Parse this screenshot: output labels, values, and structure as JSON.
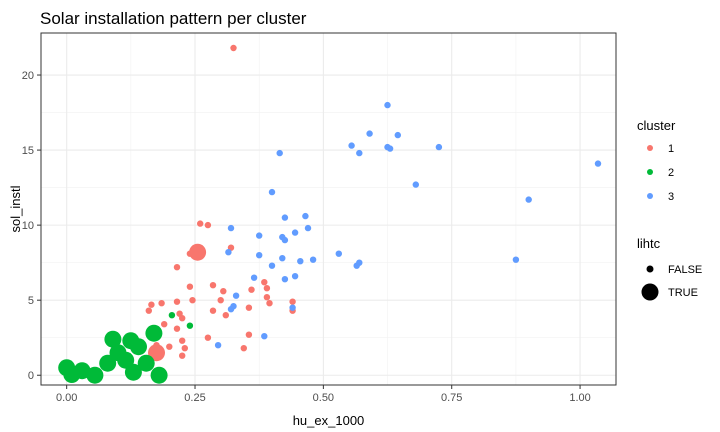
{
  "chart_data": {
    "type": "scatter",
    "title": "Solar installation pattern per cluster",
    "xlabel": "hu_ex_1000",
    "ylabel": "sol_instl",
    "xlim": [
      -0.05,
      1.07
    ],
    "ylim": [
      -0.65,
      22.8
    ],
    "x_ticks": [
      0.0,
      0.25,
      0.5,
      0.75,
      1.0
    ],
    "x_tick_labels": [
      "0.00",
      "0.25",
      "0.50",
      "0.75",
      "1.00"
    ],
    "y_ticks": [
      0,
      5,
      10,
      15,
      20
    ],
    "y_tick_labels": [
      "0",
      "5",
      "10",
      "15",
      "20"
    ],
    "grid": true,
    "colors": {
      "1": "#F8766D",
      "2": "#00BA38",
      "3": "#619CFF"
    },
    "legend_cluster": {
      "title": "cluster",
      "entries": [
        {
          "label": "1",
          "key": "1"
        },
        {
          "label": "2",
          "key": "2"
        },
        {
          "label": "3",
          "key": "3"
        }
      ]
    },
    "legend_lihtc": {
      "title": "lihtc",
      "entries": [
        {
          "label": "FALSE",
          "large": false
        },
        {
          "label": "TRUE",
          "large": true
        }
      ]
    },
    "points": [
      {
        "x": 0.325,
        "y": 21.8,
        "c": "1",
        "big": false
      },
      {
        "x": 0.26,
        "y": 10.1,
        "c": "1",
        "big": false
      },
      {
        "x": 0.275,
        "y": 10.0,
        "c": "1",
        "big": false
      },
      {
        "x": 0.32,
        "y": 8.5,
        "c": "1",
        "big": false
      },
      {
        "x": 0.24,
        "y": 8.1,
        "c": "1",
        "big": false
      },
      {
        "x": 0.215,
        "y": 7.2,
        "c": "1",
        "big": false
      },
      {
        "x": 0.285,
        "y": 6.0,
        "c": "1",
        "big": false
      },
      {
        "x": 0.305,
        "y": 5.6,
        "c": "1",
        "big": false
      },
      {
        "x": 0.36,
        "y": 5.7,
        "c": "1",
        "big": false
      },
      {
        "x": 0.385,
        "y": 6.2,
        "c": "1",
        "big": false
      },
      {
        "x": 0.39,
        "y": 5.8,
        "c": "1",
        "big": false
      },
      {
        "x": 0.24,
        "y": 5.9,
        "c": "1",
        "big": false
      },
      {
        "x": 0.245,
        "y": 5.0,
        "c": "1",
        "big": false
      },
      {
        "x": 0.215,
        "y": 4.9,
        "c": "1",
        "big": false
      },
      {
        "x": 0.185,
        "y": 4.8,
        "c": "1",
        "big": false
      },
      {
        "x": 0.165,
        "y": 4.7,
        "c": "1",
        "big": false
      },
      {
        "x": 0.16,
        "y": 4.3,
        "c": "1",
        "big": false
      },
      {
        "x": 0.22,
        "y": 4.1,
        "c": "1",
        "big": false
      },
      {
        "x": 0.225,
        "y": 3.8,
        "c": "1",
        "big": false
      },
      {
        "x": 0.285,
        "y": 4.3,
        "c": "1",
        "big": false
      },
      {
        "x": 0.3,
        "y": 5.0,
        "c": "1",
        "big": false
      },
      {
        "x": 0.31,
        "y": 4.0,
        "c": "1",
        "big": false
      },
      {
        "x": 0.355,
        "y": 4.5,
        "c": "1",
        "big": false
      },
      {
        "x": 0.39,
        "y": 5.2,
        "c": "1",
        "big": false
      },
      {
        "x": 0.44,
        "y": 4.9,
        "c": "1",
        "big": false
      },
      {
        "x": 0.44,
        "y": 4.3,
        "c": "1",
        "big": false
      },
      {
        "x": 0.395,
        "y": 4.8,
        "c": "1",
        "big": false
      },
      {
        "x": 0.355,
        "y": 2.7,
        "c": "1",
        "big": false
      },
      {
        "x": 0.275,
        "y": 2.5,
        "c": "1",
        "big": false
      },
      {
        "x": 0.215,
        "y": 3.1,
        "c": "1",
        "big": false
      },
      {
        "x": 0.19,
        "y": 3.4,
        "c": "1",
        "big": false
      },
      {
        "x": 0.225,
        "y": 2.3,
        "c": "1",
        "big": false
      },
      {
        "x": 0.23,
        "y": 1.8,
        "c": "1",
        "big": false
      },
      {
        "x": 0.2,
        "y": 1.9,
        "c": "1",
        "big": false
      },
      {
        "x": 0.225,
        "y": 1.3,
        "c": "1",
        "big": false
      },
      {
        "x": 0.345,
        "y": 1.8,
        "c": "1",
        "big": false
      },
      {
        "x": 0.175,
        "y": 2.0,
        "c": "1",
        "big": false
      },
      {
        "x": 0.255,
        "y": 8.2,
        "c": "1",
        "big": true
      },
      {
        "x": 0.175,
        "y": 1.5,
        "c": "1",
        "big": true
      },
      {
        "x": 0.205,
        "y": 4.0,
        "c": "2",
        "big": false
      },
      {
        "x": 0.24,
        "y": 3.3,
        "c": "2",
        "big": false
      },
      {
        "x": 0.0,
        "y": 0.5,
        "c": "2",
        "big": true
      },
      {
        "x": 0.01,
        "y": 0.05,
        "c": "2",
        "big": true
      },
      {
        "x": 0.03,
        "y": 0.3,
        "c": "2",
        "big": true
      },
      {
        "x": 0.055,
        "y": 0.0,
        "c": "2",
        "big": true
      },
      {
        "x": 0.08,
        "y": 0.8,
        "c": "2",
        "big": true
      },
      {
        "x": 0.09,
        "y": 2.4,
        "c": "2",
        "big": true
      },
      {
        "x": 0.1,
        "y": 1.5,
        "c": "2",
        "big": true
      },
      {
        "x": 0.115,
        "y": 1.0,
        "c": "2",
        "big": true
      },
      {
        "x": 0.125,
        "y": 2.3,
        "c": "2",
        "big": true
      },
      {
        "x": 0.13,
        "y": 0.2,
        "c": "2",
        "big": true
      },
      {
        "x": 0.14,
        "y": 1.9,
        "c": "2",
        "big": true
      },
      {
        "x": 0.155,
        "y": 0.8,
        "c": "2",
        "big": true
      },
      {
        "x": 0.17,
        "y": 2.8,
        "c": "2",
        "big": true
      },
      {
        "x": 0.18,
        "y": 0.0,
        "c": "2",
        "big": true
      },
      {
        "x": 0.625,
        "y": 18.0,
        "c": "3",
        "big": false
      },
      {
        "x": 0.59,
        "y": 16.1,
        "c": "3",
        "big": false
      },
      {
        "x": 0.645,
        "y": 16.0,
        "c": "3",
        "big": false
      },
      {
        "x": 0.555,
        "y": 15.3,
        "c": "3",
        "big": false
      },
      {
        "x": 0.625,
        "y": 15.2,
        "c": "3",
        "big": false
      },
      {
        "x": 0.63,
        "y": 15.1,
        "c": "3",
        "big": false
      },
      {
        "x": 0.725,
        "y": 15.2,
        "c": "3",
        "big": false
      },
      {
        "x": 0.57,
        "y": 14.8,
        "c": "3",
        "big": false
      },
      {
        "x": 0.415,
        "y": 14.8,
        "c": "3",
        "big": false
      },
      {
        "x": 1.035,
        "y": 14.1,
        "c": "3",
        "big": false
      },
      {
        "x": 0.68,
        "y": 12.7,
        "c": "3",
        "big": false
      },
      {
        "x": 0.4,
        "y": 12.2,
        "c": "3",
        "big": false
      },
      {
        "x": 0.9,
        "y": 11.7,
        "c": "3",
        "big": false
      },
      {
        "x": 0.425,
        "y": 10.5,
        "c": "3",
        "big": false
      },
      {
        "x": 0.465,
        "y": 10.6,
        "c": "3",
        "big": false
      },
      {
        "x": 0.47,
        "y": 9.8,
        "c": "3",
        "big": false
      },
      {
        "x": 0.32,
        "y": 9.8,
        "c": "3",
        "big": false
      },
      {
        "x": 0.445,
        "y": 9.5,
        "c": "3",
        "big": false
      },
      {
        "x": 0.375,
        "y": 9.3,
        "c": "3",
        "big": false
      },
      {
        "x": 0.42,
        "y": 9.2,
        "c": "3",
        "big": false
      },
      {
        "x": 0.425,
        "y": 9.0,
        "c": "3",
        "big": false
      },
      {
        "x": 0.315,
        "y": 8.2,
        "c": "3",
        "big": false
      },
      {
        "x": 0.53,
        "y": 8.1,
        "c": "3",
        "big": false
      },
      {
        "x": 0.375,
        "y": 8.0,
        "c": "3",
        "big": false
      },
      {
        "x": 0.42,
        "y": 7.8,
        "c": "3",
        "big": false
      },
      {
        "x": 0.48,
        "y": 7.7,
        "c": "3",
        "big": false
      },
      {
        "x": 0.875,
        "y": 7.7,
        "c": "3",
        "big": false
      },
      {
        "x": 0.455,
        "y": 7.6,
        "c": "3",
        "big": false
      },
      {
        "x": 0.57,
        "y": 7.5,
        "c": "3",
        "big": false
      },
      {
        "x": 0.565,
        "y": 7.3,
        "c": "3",
        "big": false
      },
      {
        "x": 0.4,
        "y": 7.3,
        "c": "3",
        "big": false
      },
      {
        "x": 0.445,
        "y": 6.6,
        "c": "3",
        "big": false
      },
      {
        "x": 0.365,
        "y": 6.5,
        "c": "3",
        "big": false
      },
      {
        "x": 0.425,
        "y": 6.4,
        "c": "3",
        "big": false
      },
      {
        "x": 0.33,
        "y": 5.3,
        "c": "3",
        "big": false
      },
      {
        "x": 0.325,
        "y": 4.6,
        "c": "3",
        "big": false
      },
      {
        "x": 0.32,
        "y": 4.4,
        "c": "3",
        "big": false
      },
      {
        "x": 0.44,
        "y": 4.5,
        "c": "3",
        "big": false
      },
      {
        "x": 0.385,
        "y": 2.6,
        "c": "3",
        "big": false
      },
      {
        "x": 0.295,
        "y": 2.0,
        "c": "3",
        "big": false
      }
    ]
  }
}
